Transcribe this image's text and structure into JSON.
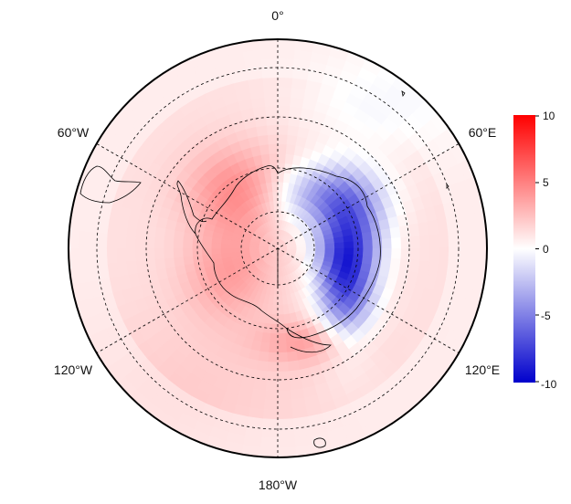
{
  "map": {
    "projection": "south-polar-stereographic",
    "longitude_labels": {
      "top": "0°",
      "upper_left": "60°W",
      "upper_right": "60°E",
      "lower_left": "120°W",
      "lower_right": "120°E",
      "bottom": "180°W"
    }
  },
  "colorbar": {
    "ticks": [
      "10",
      "5",
      "0",
      "-5",
      "-10"
    ],
    "min": -10,
    "max": 10,
    "color_low": "#0000cc",
    "color_mid": "#ffffff",
    "color_high": "#ff0000"
  },
  "style": {
    "graticule_color": "#000000",
    "coast_color": "#000000",
    "frame_color": "#000000"
  }
}
